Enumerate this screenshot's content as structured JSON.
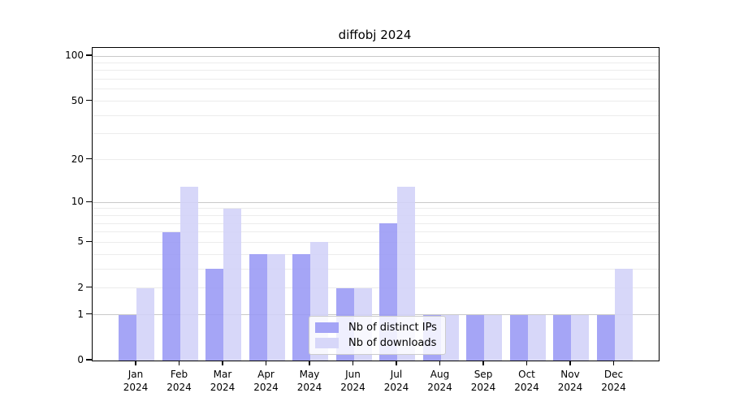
{
  "title": "diffobj 2024",
  "legend": {
    "items": [
      {
        "label": "Nb of distinct IPs",
        "color": "#a4a4f6"
      },
      {
        "label": "Nb of downloads",
        "color": "#d7d7f9"
      }
    ]
  },
  "y_axis": {
    "tick_labels": [
      "0",
      "1",
      "2",
      "5",
      "10",
      "20",
      "50",
      "100"
    ]
  },
  "x_axis": {
    "year_line": "2024"
  },
  "chart_data": {
    "type": "bar",
    "title": "diffobj 2024",
    "categories": [
      "Jan",
      "Feb",
      "Mar",
      "Apr",
      "May",
      "Jun",
      "Jul",
      "Aug",
      "Sep",
      "Oct",
      "Nov",
      "Dec"
    ],
    "year": "2024",
    "series": [
      {
        "name": "Nb of distinct IPs",
        "color": "#9898f5",
        "values": [
          1,
          6,
          3,
          4,
          4,
          2,
          7,
          1,
          1,
          1,
          1,
          1
        ]
      },
      {
        "name": "Nb of downloads",
        "color": "#d2d2f8",
        "values": [
          2,
          13,
          9,
          4,
          5,
          2,
          13,
          1,
          1,
          1,
          1,
          3
        ]
      }
    ],
    "yscale": "log1p",
    "yticks": [
      0,
      1,
      2,
      5,
      10,
      20,
      50,
      100
    ],
    "ylim": [
      0,
      113
    ],
    "grid_major_values": [
      1,
      10,
      100
    ],
    "grid_minor_values": [
      2,
      3,
      4,
      5,
      6,
      7,
      8,
      9,
      20,
      30,
      40,
      50,
      60,
      70,
      80,
      90
    ],
    "grid": "horizontal",
    "legend_position": "inside-bottom-center",
    "xlabel": "",
    "ylabel": ""
  },
  "colors": {
    "bar_dark": "#9898f5",
    "bar_light": "#d2d2f8",
    "grid_minor": "#ececec",
    "grid_major": "#c9c9c9",
    "axis": "#000000",
    "background": "#ffffff"
  }
}
